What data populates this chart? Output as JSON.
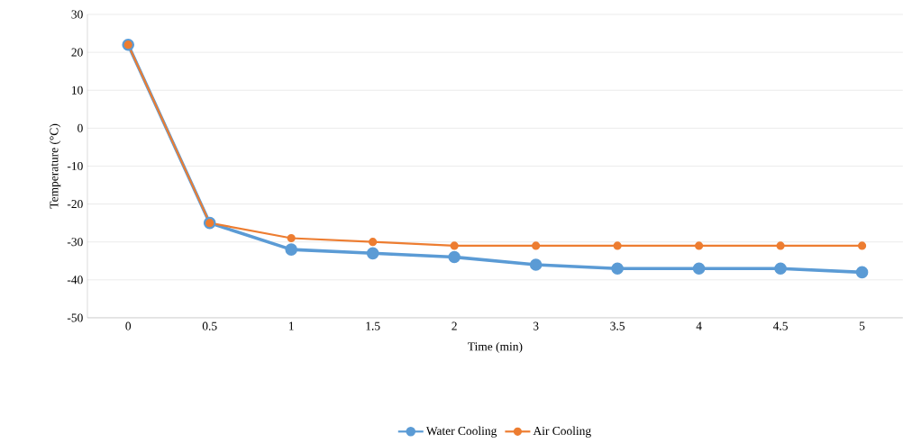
{
  "chart_data": {
    "type": "line",
    "xlabel": "Time (min)",
    "ylabel": "Temperature (°C)",
    "categories": [
      "0",
      "0.5",
      "1",
      "1.5",
      "2",
      "3",
      "3.5",
      "4",
      "4.5",
      "5"
    ],
    "series": [
      {
        "name": "Water Cooling",
        "color": "#5b9bd5",
        "values": [
          22,
          -25,
          -32,
          -33,
          -34,
          -36,
          -37,
          -37,
          -37,
          -38
        ]
      },
      {
        "name": "Air Cooling",
        "color": "#ed7d31",
        "values": [
          22,
          -25,
          -29,
          -30,
          -31,
          -31,
          -31,
          -31,
          -31,
          -31
        ]
      }
    ],
    "ylim": [
      -50,
      30
    ],
    "yticks": [
      -50,
      -40,
      -30,
      -20,
      -10,
      0,
      10,
      20,
      30
    ],
    "grid": "y",
    "legend": "bottom",
    "marker": "circle",
    "line_style": "solid"
  }
}
